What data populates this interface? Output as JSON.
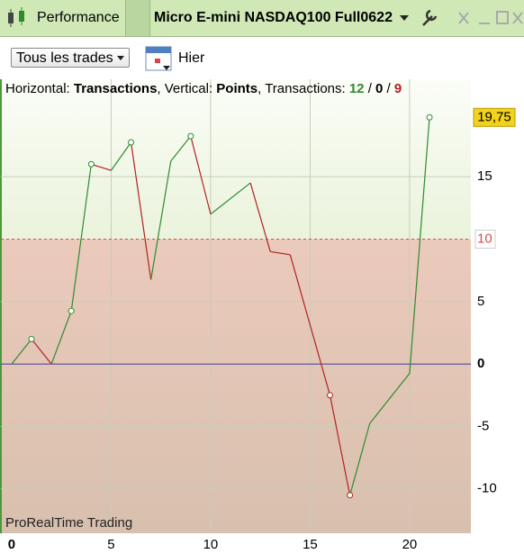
{
  "toolbar": {
    "tab": "Performance",
    "instrument": "Micro E-mini NASDAQ100 Full0622"
  },
  "filters": {
    "dropdown": "Tous les trades",
    "period": "Hier"
  },
  "chart_data": {
    "type": "line",
    "header": {
      "h_label": "Horizontal: ",
      "h_value": "Transactions",
      "sep1": ", Vertical: ",
      "v_value": "Points",
      "sep2": ", Transactions: ",
      "winners": 12,
      "slash1": " / ",
      "neutral": 0,
      "slash2": " / ",
      "losers": 9
    },
    "watermark": "ProRealTime Trading",
    "x": [
      0,
      1,
      2,
      3,
      4,
      5,
      6,
      7,
      8,
      9,
      10,
      12,
      13,
      14,
      16,
      17,
      18,
      20,
      21
    ],
    "series": [
      {
        "name": "Points",
        "up_color": "#2e8b2e",
        "down_color": "#b22222",
        "values": [
          0,
          2,
          0,
          4.25,
          16,
          15.5,
          17.75,
          6.75,
          16.25,
          18.25,
          12,
          14.5,
          9,
          8.75,
          -2.5,
          -10.5,
          -4.75,
          -0.75,
          19.75
        ],
        "markers": [
          1,
          3,
          4,
          6,
          9,
          14,
          15,
          18
        ],
        "value_labels": [
          null,
          null,
          null,
          null,
          null,
          null,
          null,
          null,
          null,
          null,
          null,
          null,
          null,
          null,
          null,
          null,
          null,
          null,
          "19,75"
        ]
      }
    ],
    "xlim": [
      -0.54,
      23.08
    ],
    "ylim": [
      -13.55,
      22.8
    ],
    "xticks": [
      0,
      5,
      10,
      15,
      20
    ],
    "yticks": [
      -10,
      -5,
      0,
      5,
      10,
      15
    ],
    "threshold": 10,
    "grid": true
  }
}
